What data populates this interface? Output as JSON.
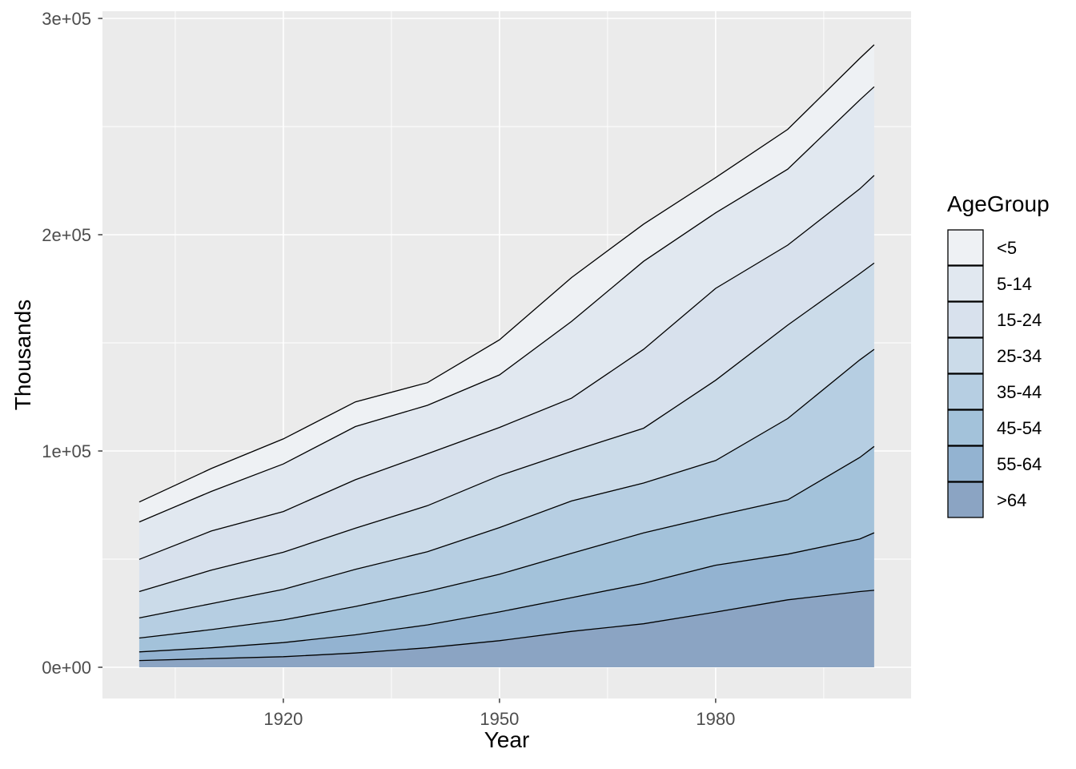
{
  "figure": {
    "background_color": "#ffffff",
    "panel_color": "#ebebeb",
    "gridline_color": "#ffffff",
    "tick_color": "#333333",
    "tick_label_color": "#4d4d4d",
    "axis_title_color": "#000000",
    "boundary_line_color": "#000000"
  },
  "chart_data": {
    "type": "area",
    "stacked": true,
    "title": "",
    "xlabel": "Year",
    "ylabel": "Thousands",
    "legend_title": "AgeGroup",
    "legend_position": "right",
    "grid": true,
    "x": [
      1900,
      1910,
      1920,
      1930,
      1940,
      1950,
      1960,
      1970,
      1980,
      1990,
      2000,
      2002
    ],
    "series": [
      {
        "name": "<5",
        "color": "#eef1f4",
        "values": [
          9200,
          10600,
          11600,
          11400,
          10500,
          16200,
          20300,
          17200,
          16300,
          18400,
          19200,
          19400
        ]
      },
      {
        "name": "5-14",
        "color": "#e1e8f0",
        "values": [
          17300,
          18300,
          22000,
          24600,
          22400,
          24300,
          35500,
          40700,
          34900,
          35100,
          41100,
          41000
        ]
      },
      {
        "name": "15-24",
        "color": "#d8e1ed",
        "values": [
          14900,
          18100,
          18800,
          22400,
          24000,
          22300,
          24600,
          36500,
          42500,
          37000,
          39200,
          40500
        ]
      },
      {
        "name": "25-34",
        "color": "#cbdbe9",
        "values": [
          12200,
          15500,
          17200,
          19000,
          21300,
          24000,
          22900,
          25300,
          37100,
          43200,
          39900,
          39900
        ]
      },
      {
        "name": "35-44",
        "color": "#b6cee2",
        "values": [
          9300,
          12000,
          14100,
          17200,
          18300,
          21600,
          24200,
          23100,
          25600,
          37600,
          45100,
          44900
        ]
      },
      {
        "name": "45-54",
        "color": "#a3c2da",
        "values": [
          6400,
          8400,
          10500,
          13100,
          15500,
          17400,
          20500,
          23300,
          22800,
          25100,
          37700,
          39900
        ]
      },
      {
        "name": "55-64",
        "color": "#93b3d1",
        "values": [
          4000,
          5000,
          6500,
          8400,
          10600,
          13300,
          15600,
          18700,
          21700,
          21100,
          24300,
          26600
        ]
      },
      {
        "name": ">64",
        "color": "#8ba4c3",
        "values": [
          3100,
          4000,
          4900,
          6600,
          9000,
          12300,
          16600,
          20100,
          25500,
          31200,
          35000,
          35600
        ]
      }
    ],
    "stack_note": "last series (>64) is the bottom band; first series (<5) is the top band",
    "xlim": [
      1894.9,
      2007.1
    ],
    "ylim": [
      -15500,
      303000
    ],
    "x_ticks": [
      {
        "value": 1920,
        "label": "1920"
      },
      {
        "value": 1950,
        "label": "1950"
      },
      {
        "value": 1980,
        "label": "1980"
      }
    ],
    "y_ticks": [
      {
        "value": 0,
        "label": "0e+00"
      },
      {
        "value": 100000,
        "label": "1e+05"
      },
      {
        "value": 200000,
        "label": "2e+05"
      },
      {
        "value": 300000,
        "label": "3e+05"
      }
    ],
    "x_minor": [
      1905,
      1935,
      1965,
      1995
    ],
    "y_minor": [
      50000,
      150000,
      250000
    ]
  }
}
